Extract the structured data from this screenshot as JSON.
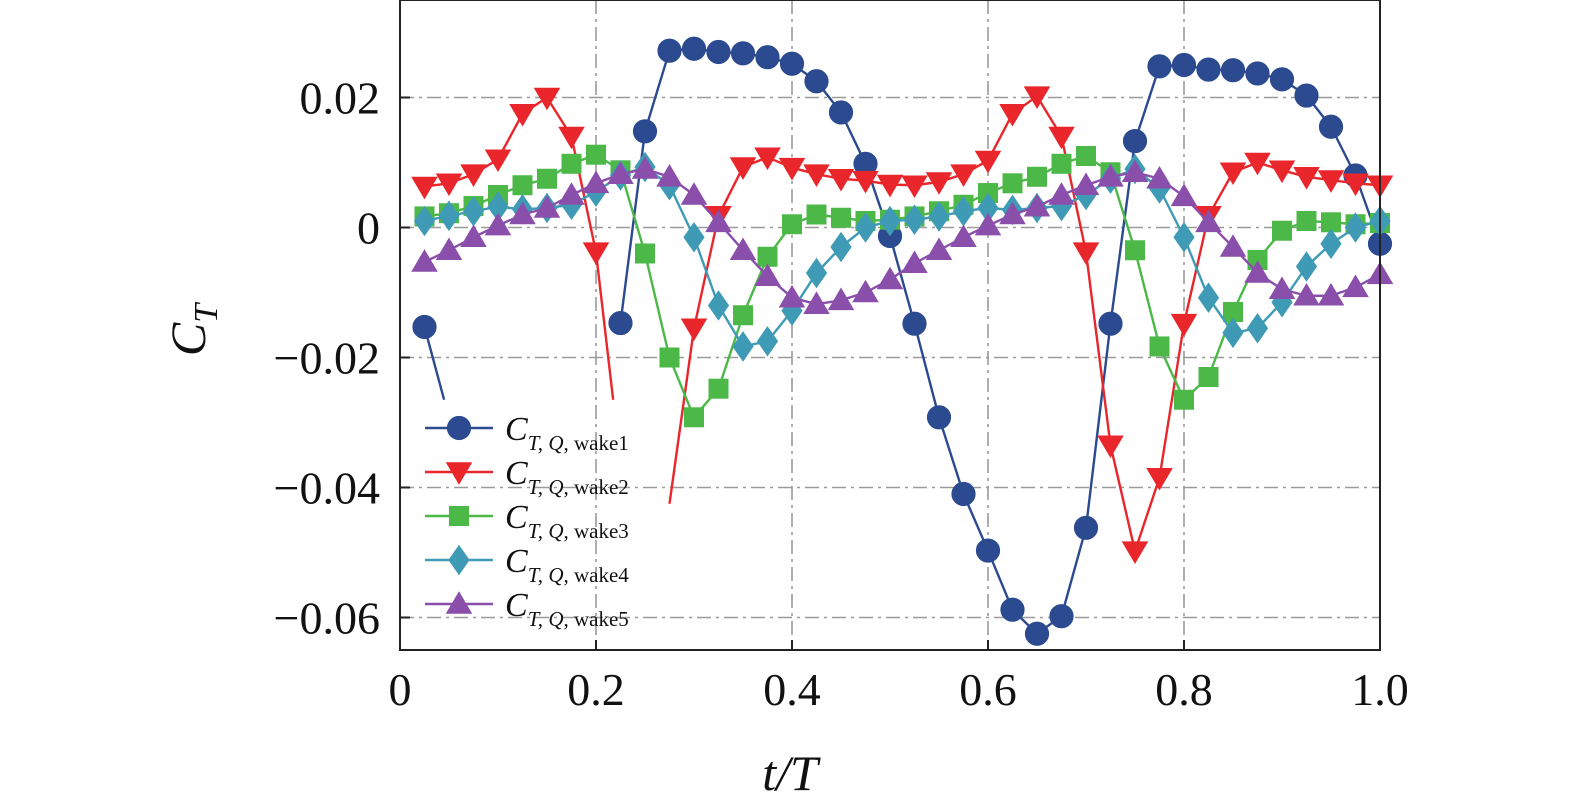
{
  "chart_data": {
    "type": "line",
    "xlabel": "t/T",
    "ylabel": "C_T",
    "xlim": [
      0,
      1.0
    ],
    "ylim": [
      -0.065,
      0.035
    ],
    "xticks": [
      0,
      0.2,
      0.4,
      0.6,
      0.8,
      1.0
    ],
    "xtick_labels": [
      "0",
      "0.2",
      "0.4",
      "0.6",
      "0.8",
      "1.0"
    ],
    "yticks": [
      0.02,
      0,
      -0.02,
      -0.04,
      -0.06
    ],
    "ytick_labels": [
      "0.02",
      "0",
      "−0.02",
      "−0.04",
      "−0.06"
    ],
    "grid": true,
    "legend_position": "lower-left",
    "series": [
      {
        "name": "C_{T, Q, wake1}",
        "legend_main": "C",
        "legend_sub": "T, Q",
        "legend_suffix": ", wake1",
        "color": "#2b4a8f",
        "marker": "circle",
        "x": [
          0.025,
          0.225,
          0.25,
          0.275,
          0.3,
          0.325,
          0.35,
          0.375,
          0.4,
          0.425,
          0.45,
          0.475,
          0.5,
          0.525,
          0.55,
          0.575,
          0.6,
          0.625,
          0.65,
          0.675,
          0.7,
          0.725,
          0.75,
          0.775,
          0.8,
          0.825,
          0.85,
          0.875,
          0.9,
          0.925,
          0.95,
          0.975,
          1.0
        ],
        "y": [
          -0.0153,
          -0.0147,
          0.0148,
          0.0272,
          0.0275,
          0.027,
          0.0268,
          0.0262,
          0.0252,
          0.0225,
          0.0177,
          0.0098,
          -0.0013,
          -0.0148,
          -0.0292,
          -0.041,
          -0.0497,
          -0.0588,
          -0.0625,
          -0.0598,
          -0.0462,
          -0.0148,
          0.0133,
          0.0248,
          0.025,
          0.0243,
          0.0242,
          0.0237,
          0.0228,
          0.0203,
          0.0155,
          0.008,
          -0.0025
        ],
        "line_stubs": [
          [
            0.025,
            -0.0153,
            0.045,
            -0.0265
          ]
        ]
      },
      {
        "name": "C_{T, Q, wake2}",
        "legend_main": "C",
        "legend_sub": "T, Q",
        "legend_suffix": ", wake2",
        "color": "#e8262b",
        "marker": "triangle-down",
        "x": [
          0.025,
          0.05,
          0.075,
          0.1,
          0.125,
          0.15,
          0.175,
          0.2,
          0.3,
          0.325,
          0.35,
          0.375,
          0.4,
          0.425,
          0.45,
          0.475,
          0.5,
          0.525,
          0.55,
          0.575,
          0.6,
          0.625,
          0.65,
          0.675,
          0.7,
          0.725,
          0.75,
          0.775,
          0.8,
          0.825,
          0.85,
          0.875,
          0.9,
          0.925,
          0.95,
          0.975,
          1.0
        ],
        "y": [
          0.0063,
          0.0068,
          0.0082,
          0.0105,
          0.0175,
          0.02,
          0.014,
          -0.0038,
          -0.0155,
          0.0018,
          0.0093,
          0.0108,
          0.0092,
          0.0082,
          0.0075,
          0.0072,
          0.0066,
          0.0065,
          0.007,
          0.0082,
          0.0103,
          0.0175,
          0.0202,
          0.014,
          -0.0038,
          -0.0335,
          -0.0498,
          -0.0385,
          -0.0148,
          0.0018,
          0.0085,
          0.01,
          0.0088,
          0.0078,
          0.0073,
          0.0068,
          0.0065
        ],
        "line_stubs": [
          [
            0.2,
            -0.0038,
            0.2175,
            -0.0265
          ],
          [
            0.3,
            -0.0155,
            0.275,
            -0.0425
          ]
        ]
      },
      {
        "name": "C_{T, Q, wake3}",
        "legend_main": "C",
        "legend_sub": "T, Q",
        "legend_suffix": ", wake3",
        "color": "#4cb848",
        "marker": "square",
        "x": [
          0.025,
          0.05,
          0.075,
          0.1,
          0.125,
          0.15,
          0.175,
          0.2,
          0.225,
          0.25,
          0.275,
          0.3,
          0.325,
          0.35,
          0.375,
          0.4,
          0.425,
          0.45,
          0.475,
          0.5,
          0.525,
          0.55,
          0.575,
          0.6,
          0.625,
          0.65,
          0.675,
          0.7,
          0.725,
          0.75,
          0.775,
          0.8,
          0.825,
          0.85,
          0.875,
          0.9,
          0.925,
          0.95,
          0.975,
          1.0
        ],
        "y": [
          0.0017,
          0.0022,
          0.0033,
          0.005,
          0.0065,
          0.0075,
          0.0098,
          0.0112,
          0.0088,
          -0.004,
          -0.02,
          -0.0292,
          -0.0248,
          -0.0135,
          -0.0045,
          0.0005,
          0.002,
          0.0015,
          0.001,
          0.0012,
          0.0017,
          0.0025,
          0.0035,
          0.0053,
          0.0068,
          0.0078,
          0.0098,
          0.011,
          0.0085,
          -0.0035,
          -0.0183,
          -0.0265,
          -0.023,
          -0.013,
          -0.005,
          -0.0005,
          0.001,
          0.0008,
          0.0005,
          0.0007
        ]
      },
      {
        "name": "C_{T, Q, wake4}",
        "legend_main": "C",
        "legend_sub": "T, Q",
        "legend_suffix": ", wake4",
        "color": "#3f9bb5",
        "marker": "diamond",
        "x": [
          0.025,
          0.05,
          0.075,
          0.1,
          0.125,
          0.15,
          0.175,
          0.2,
          0.225,
          0.25,
          0.275,
          0.3,
          0.325,
          0.35,
          0.375,
          0.4,
          0.425,
          0.45,
          0.475,
          0.5,
          0.525,
          0.55,
          0.575,
          0.6,
          0.625,
          0.65,
          0.675,
          0.7,
          0.725,
          0.75,
          0.775,
          0.8,
          0.825,
          0.85,
          0.875,
          0.9,
          0.925,
          0.95,
          0.975,
          1.0
        ],
        "y": [
          0.001,
          0.0018,
          0.0025,
          0.0032,
          0.0028,
          0.003,
          0.0035,
          0.0055,
          0.008,
          0.0093,
          0.0065,
          -0.0015,
          -0.012,
          -0.0183,
          -0.0175,
          -0.0128,
          -0.007,
          -0.003,
          0.0,
          0.001,
          0.0012,
          0.0017,
          0.0025,
          0.003,
          0.0027,
          0.003,
          0.0033,
          0.005,
          0.0075,
          0.009,
          0.006,
          -0.0015,
          -0.0108,
          -0.0162,
          -0.0155,
          -0.0115,
          -0.006,
          -0.0025,
          0.0,
          0.001
        ]
      },
      {
        "name": "C_{T, Q, wake5}",
        "legend_main": "C",
        "legend_sub": "T, Q",
        "legend_suffix": ", wake5",
        "color": "#8a4fab",
        "marker": "triangle-up",
        "x": [
          0.025,
          0.05,
          0.075,
          0.1,
          0.125,
          0.15,
          0.175,
          0.2,
          0.225,
          0.25,
          0.275,
          0.3,
          0.325,
          0.35,
          0.375,
          0.4,
          0.425,
          0.45,
          0.475,
          0.5,
          0.525,
          0.55,
          0.575,
          0.6,
          0.625,
          0.65,
          0.675,
          0.7,
          0.725,
          0.75,
          0.775,
          0.8,
          0.825,
          0.85,
          0.875,
          0.9,
          0.925,
          0.95,
          0.975,
          1.0
        ],
        "y": [
          -0.0053,
          -0.0035,
          -0.0015,
          0.0003,
          0.002,
          0.003,
          0.005,
          0.0068,
          0.0082,
          0.009,
          0.0078,
          0.005,
          0.0008,
          -0.0035,
          -0.0075,
          -0.0108,
          -0.0118,
          -0.0112,
          -0.01,
          -0.008,
          -0.0055,
          -0.0035,
          -0.0015,
          0.0003,
          0.002,
          0.0032,
          0.005,
          0.0065,
          0.0078,
          0.0085,
          0.0075,
          0.0048,
          0.0008,
          -0.003,
          -0.007,
          -0.0095,
          -0.0105,
          -0.0105,
          -0.0092,
          -0.0072
        ]
      }
    ]
  }
}
